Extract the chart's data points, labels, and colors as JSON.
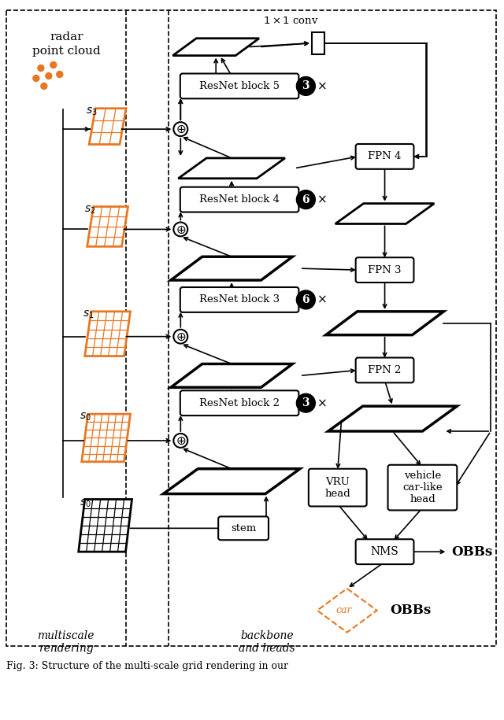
{
  "bg_color": "#ffffff",
  "orange": "#E87722",
  "black": "#000000",
  "fig_w": 6.4,
  "fig_h": 9.15,
  "dpi": 100,
  "caption": "Fig. 3: Structure of the multi-scale grid rendering in our",
  "label_multiscale": "multiscale\nrendering",
  "label_backbone": "backbone\nand heads",
  "label_radar": "radar\npoint cloud",
  "s_labels": [
    "$s_3$",
    "$s_2$",
    "$s_1$",
    "$s_0$",
    "$s_0$"
  ],
  "resnet_labels": [
    "ResNet block 5",
    "ResNet block 4",
    "ResNet block 3",
    "ResNet block 2"
  ],
  "resnet_repeats": [
    "3",
    "6",
    "6",
    "3"
  ],
  "fpn_labels": [
    "FPN 4",
    "FPN 3",
    "FPN 2"
  ],
  "stem_label": "stem",
  "vru_label": "VRU\nhead",
  "vehicle_label": "vehicle\ncar-like\nhead",
  "nms_label": "NMS",
  "obbs_label": "OBBs",
  "car_label": "car",
  "conv_label": "$1 \\times 1$ conv"
}
